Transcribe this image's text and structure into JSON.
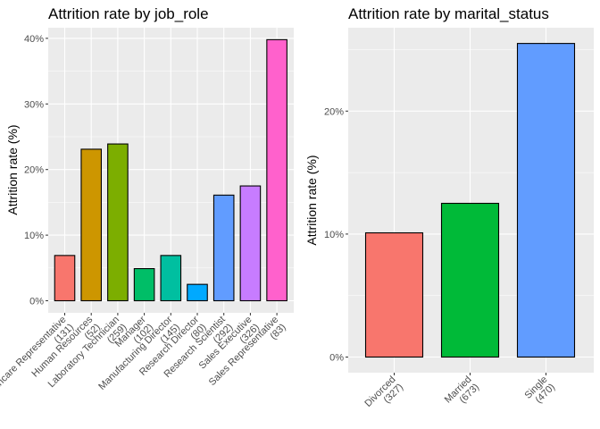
{
  "chart_data": [
    {
      "type": "bar",
      "title": "Attrition rate by job_role",
      "xlabel": "",
      "ylabel": "Attrition rate (%)",
      "ylim": [
        0,
        0.42
      ],
      "y_ticks": [
        "0%",
        "10%",
        "20%",
        "30%",
        "40%"
      ],
      "y_tick_values": [
        0,
        0.1,
        0.2,
        0.3,
        0.4
      ],
      "grid": true,
      "categories": [
        {
          "name": "Healthcare Representative",
          "count": "(131)",
          "value": 0.069,
          "color": "#F8766D"
        },
        {
          "name": "Human Resources",
          "count": "(52)",
          "value": 0.231,
          "color": "#CD9600"
        },
        {
          "name": "Laboratory Technician",
          "count": "(259)",
          "value": 0.239,
          "color": "#7CAE00"
        },
        {
          "name": "Manager",
          "count": "(102)",
          "value": 0.049,
          "color": "#00BE67"
        },
        {
          "name": "Manufacturing Director",
          "count": "(145)",
          "value": 0.069,
          "color": "#00BFA0"
        },
        {
          "name": "Research Director",
          "count": "(80)",
          "value": 0.025,
          "color": "#00A9FF"
        },
        {
          "name": "Research Scientist",
          "count": "(292)",
          "value": 0.161,
          "color": "#619CFF"
        },
        {
          "name": "Sales Executive",
          "count": "(326)",
          "value": 0.175,
          "color": "#C77CFF"
        },
        {
          "name": "Sales Representative",
          "count": "(83)",
          "value": 0.398,
          "color": "#FF61CC"
        }
      ]
    },
    {
      "type": "bar",
      "title": "Attrition rate by marital_status",
      "xlabel": "",
      "ylabel": "Attrition rate (%)",
      "ylim": [
        0,
        0.27
      ],
      "y_ticks": [
        "0%",
        "10%",
        "20%"
      ],
      "y_tick_values": [
        0,
        0.1,
        0.2
      ],
      "grid": true,
      "categories": [
        {
          "name": "Divorced",
          "count": "(327)",
          "value": 0.101,
          "color": "#F8766D"
        },
        {
          "name": "Married",
          "count": "(673)",
          "value": 0.125,
          "color": "#00BA38"
        },
        {
          "name": "Single",
          "count": "(470)",
          "value": 0.255,
          "color": "#619CFF"
        }
      ]
    }
  ]
}
